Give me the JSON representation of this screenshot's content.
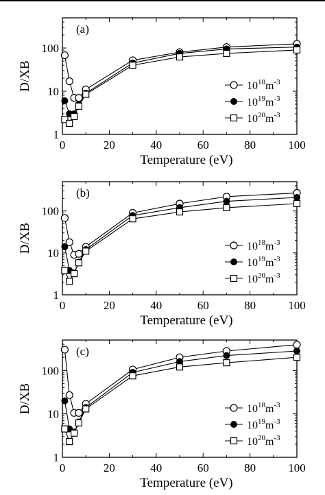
{
  "chart_data": [
    {
      "type": "line",
      "panel_label": "(a)",
      "xlabel": "Temperature (eV)",
      "ylabel": "D/XB",
      "xlim": [
        0,
        100
      ],
      "ylim": [
        1,
        500
      ],
      "yscale": "log",
      "xticks": [
        0,
        20,
        40,
        60,
        80,
        100
      ],
      "xtick_labels": [
        "0",
        "20",
        "40",
        "60",
        "80",
        "100"
      ],
      "yticks": [
        1,
        10,
        100
      ],
      "ytick_labels": [
        "1",
        "10",
        "100"
      ],
      "legend_position": "lower-right",
      "series": [
        {
          "marker": "open-circle",
          "legend_base": "10",
          "legend_exp": "18",
          "legend_unit": "m",
          "legend_unit_exp": "-3",
          "x": [
            1,
            3,
            5,
            7,
            10,
            30,
            50,
            70,
            100
          ],
          "y": [
            68,
            17,
            7,
            7,
            11,
            52,
            80,
            105,
            125
          ]
        },
        {
          "marker": "filled-circle",
          "legend_base": "10",
          "legend_exp": "19",
          "legend_unit": "m",
          "legend_unit_exp": "-3",
          "x": [
            1,
            3,
            5,
            7,
            10,
            30,
            50,
            70,
            100
          ],
          "y": [
            6,
            3,
            3,
            5,
            9,
            45,
            75,
            95,
            105
          ]
        },
        {
          "marker": "open-square",
          "legend_base": "10",
          "legend_exp": "20",
          "legend_unit": "m",
          "legend_unit_exp": "-3",
          "x": [
            1,
            3,
            5,
            7,
            10,
            30,
            50,
            70,
            100
          ],
          "y": [
            2.2,
            1.8,
            2.6,
            4.5,
            8.5,
            40,
            62,
            75,
            90
          ]
        }
      ]
    },
    {
      "type": "line",
      "panel_label": "(b)",
      "xlabel": "Temperature (eV)",
      "ylabel": "D/XB",
      "xlim": [
        0,
        100
      ],
      "ylim": [
        1,
        500
      ],
      "yscale": "log",
      "xticks": [
        0,
        20,
        40,
        60,
        80,
        100
      ],
      "xtick_labels": [
        "0",
        "20",
        "40",
        "60",
        "80",
        "100"
      ],
      "yticks": [
        1,
        10,
        100
      ],
      "ytick_labels": [
        "1",
        "10",
        "100"
      ],
      "legend_position": "lower-right",
      "series": [
        {
          "marker": "open-circle",
          "legend_base": "10",
          "legend_exp": "18",
          "legend_unit": "m",
          "legend_unit_exp": "-3",
          "x": [
            1,
            3,
            5,
            7,
            10,
            30,
            50,
            70,
            100
          ],
          "y": [
            68,
            18,
            9,
            9.5,
            14,
            90,
            150,
            220,
            270
          ]
        },
        {
          "marker": "filled-circle",
          "legend_base": "10",
          "legend_exp": "19",
          "legend_unit": "m",
          "legend_unit_exp": "-3",
          "x": [
            1,
            3,
            5,
            7,
            10,
            30,
            50,
            70,
            100
          ],
          "y": [
            14,
            3.8,
            3.3,
            6,
            12,
            78,
            120,
            170,
            210
          ]
        },
        {
          "marker": "open-square",
          "legend_base": "10",
          "legend_exp": "20",
          "legend_unit": "m",
          "legend_unit_exp": "-3",
          "x": [
            1,
            3,
            5,
            7,
            10,
            30,
            50,
            70,
            100
          ],
          "y": [
            3.8,
            2.1,
            3.2,
            5.8,
            11,
            65,
            95,
            120,
            150
          ]
        }
      ]
    },
    {
      "type": "line",
      "panel_label": "(c)",
      "xlabel": "Temperature (eV)",
      "ylabel": "D/XB",
      "xlim": [
        0,
        100
      ],
      "ylim": [
        1,
        500
      ],
      "yscale": "log",
      "xticks": [
        0,
        20,
        40,
        60,
        80,
        100
      ],
      "xtick_labels": [
        "0",
        "20",
        "40",
        "60",
        "80",
        "100"
      ],
      "yticks": [
        1,
        10,
        100
      ],
      "ytick_labels": [
        "1",
        "10",
        "100"
      ],
      "legend_position": "lower-right",
      "series": [
        {
          "marker": "open-circle",
          "legend_base": "10",
          "legend_exp": "18",
          "legend_unit": "m",
          "legend_unit_exp": "-3",
          "x": [
            1,
            3,
            5,
            7,
            10,
            30,
            50,
            70,
            100
          ],
          "y": [
            300,
            27,
            10.5,
            10.5,
            17,
            105,
            200,
            280,
            390
          ]
        },
        {
          "marker": "filled-circle",
          "legend_base": "10",
          "legend_exp": "19",
          "legend_unit": "m",
          "legend_unit_exp": "-3",
          "x": [
            1,
            3,
            5,
            7,
            10,
            30,
            50,
            70,
            100
          ],
          "y": [
            20,
            4.5,
            3.8,
            6.5,
            14,
            90,
            160,
            220,
            280
          ]
        },
        {
          "marker": "open-square",
          "legend_base": "10",
          "legend_exp": "20",
          "legend_unit": "m",
          "legend_unit_exp": "-3",
          "x": [
            1,
            3,
            5,
            7,
            10,
            30,
            50,
            70,
            100
          ],
          "y": [
            4.5,
            2.3,
            3.6,
            6.2,
            13,
            75,
            120,
            150,
            200
          ]
        }
      ]
    }
  ]
}
